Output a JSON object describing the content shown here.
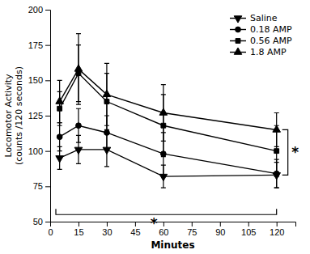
{
  "chart_data": {
    "type": "line",
    "xlabel": "Minutes",
    "ylabel": "Locomotor Activity\n(counts /120 seconds)",
    "x": [
      5,
      15,
      30,
      60,
      120
    ],
    "series": [
      {
        "name": "Saline",
        "color": "#000000",
        "marker": "triangle-down",
        "line_style": "solid",
        "values": [
          95,
          101,
          101,
          82,
          83
        ],
        "errors": [
          8,
          10,
          12,
          8,
          9
        ]
      },
      {
        "name": "0.18 AMP",
        "color": "#000000",
        "marker": "circle",
        "line_style": "solid",
        "values": [
          110,
          118,
          113,
          98,
          84
        ],
        "errors": [
          10,
          12,
          12,
          15,
          10
        ]
      },
      {
        "name": "0.56 AMP",
        "color": "#000000",
        "marker": "square",
        "line_style": "solid",
        "values": [
          130,
          155,
          135,
          118,
          100
        ],
        "errors": [
          12,
          20,
          20,
          22,
          18
        ]
      },
      {
        "name": "1.8 AMP",
        "color": "#000000",
        "marker": "triangle-up",
        "line_style": "solid",
        "values": [
          135,
          158,
          140,
          127,
          115
        ],
        "errors": [
          15,
          25,
          22,
          20,
          12
        ]
      }
    ],
    "xlim": [
      0,
      130
    ],
    "ylim": [
      50,
      200
    ],
    "xticks": [
      0,
      15,
      30,
      45,
      60,
      75,
      90,
      105,
      120
    ],
    "yticks": [
      50,
      75,
      100,
      125,
      150,
      175,
      200
    ],
    "grid": false,
    "legend": "upper right",
    "annotations": [
      {
        "text": "*",
        "x": 55,
        "y": 53,
        "bracket": {
          "x": [
            3,
            120
          ],
          "y": 55,
          "tick_y": 59
        }
      },
      {
        "text": "*",
        "x": 128,
        "y": 99,
        "bracket": {
          "y": [
            83,
            115
          ],
          "x": 126,
          "tick_x": 123
        }
      }
    ]
  }
}
